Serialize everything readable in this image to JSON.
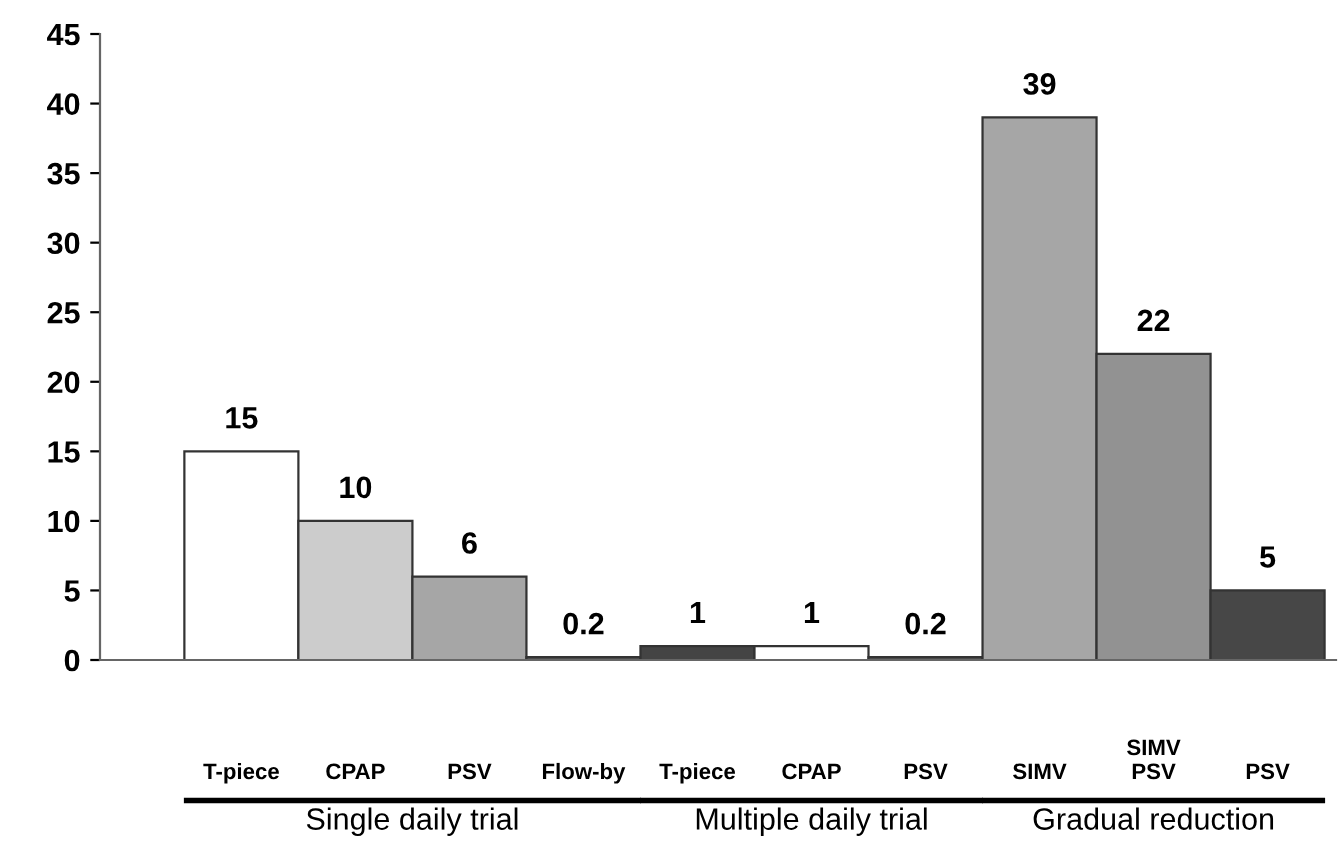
{
  "chart_data": {
    "type": "bar",
    "categories": [
      "T-piece",
      "CPAP",
      "PSV",
      "Flow-by",
      "T-piece",
      "CPAP",
      "PSV",
      "SIMV",
      "SIMV\nPSV",
      "PSV"
    ],
    "values": [
      15,
      10,
      6,
      0.2,
      1,
      1,
      0.2,
      39,
      22,
      5
    ],
    "colors": [
      "#ffffff",
      "#cccccc",
      "#a6a6a6",
      "#555555",
      "#444444",
      "#ffffff",
      "#555555",
      "#a6a6a6",
      "#929292",
      "#474747"
    ],
    "data_labels": true,
    "ylim": [
      0,
      45
    ],
    "yticks": [
      0,
      5,
      10,
      15,
      20,
      25,
      30,
      35,
      40,
      45
    ],
    "grid": false,
    "legend": false,
    "annotations": [
      "Single daily trial",
      "Multiple daily trial",
      "Gradual reduction"
    ]
  }
}
